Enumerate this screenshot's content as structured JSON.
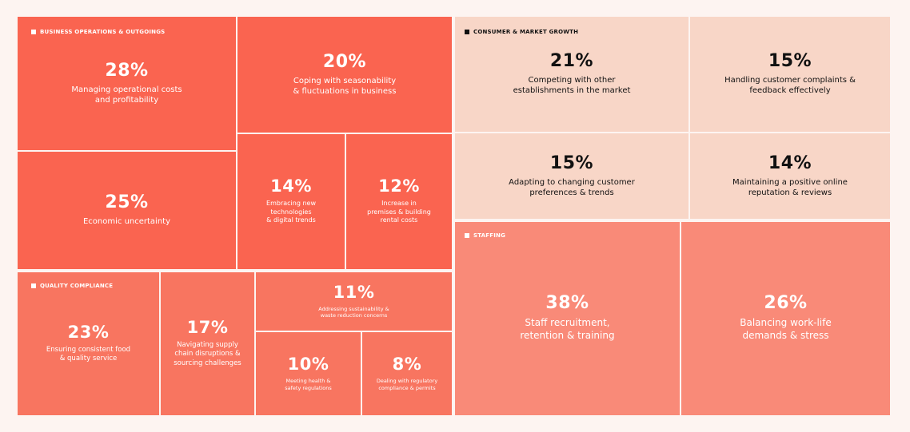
{
  "colors": {
    "page_background": "#fdf4f1",
    "business_operations": "#fa6450",
    "consumer_market": "#f8d6c7",
    "quality_compliance": "#f87560",
    "staffing": "#f98a78",
    "divider": "#ffffff"
  },
  "chart_data": {
    "type": "treemap",
    "groups": [
      {
        "name": "BUSINESS OPERATIONS & OUTGOINGS",
        "items": [
          {
            "value": "28%",
            "label": "Managing operational costs\nand profitability"
          },
          {
            "value": "25%",
            "label": "Economic uncertainty"
          },
          {
            "value": "20%",
            "label": "Coping with seasonability\n& fluctuations in business"
          },
          {
            "value": "14%",
            "label": "Embracing new\ntechnologies\n& digital trends"
          },
          {
            "value": "12%",
            "label": "Increase in\npremises & building\nrental costs"
          }
        ]
      },
      {
        "name": "CONSUMER & MARKET GROWTH",
        "items": [
          {
            "value": "21%",
            "label": "Competing with other\nestablishments in the market"
          },
          {
            "value": "15%",
            "label": "Handling customer complaints &\nfeedback effectively"
          },
          {
            "value": "15%",
            "label": "Adapting to changing customer\npreferences & trends"
          },
          {
            "value": "14%",
            "label": "Maintaining a positive online\nreputation & reviews"
          }
        ]
      },
      {
        "name": "QUALITY COMPLIANCE",
        "items": [
          {
            "value": "23%",
            "label": "Ensuring consistent food\n& quality service"
          },
          {
            "value": "17%",
            "label": "Navigating supply\nchain disruptions &\nsourcing challenges"
          },
          {
            "value": "11%",
            "label": "Addressing sustainability &\nwaste reduction concerns"
          },
          {
            "value": "10%",
            "label": "Meeting health &\nsafety regulations"
          },
          {
            "value": "8%",
            "label": "Dealing with regulatory\ncompliance & permits"
          }
        ]
      },
      {
        "name": "STAFFING",
        "items": [
          {
            "value": "38%",
            "label": "Staff recruitment,\nretention & training"
          },
          {
            "value": "26%",
            "label": "Balancing work-life\ndemands & stress"
          }
        ]
      }
    ]
  }
}
